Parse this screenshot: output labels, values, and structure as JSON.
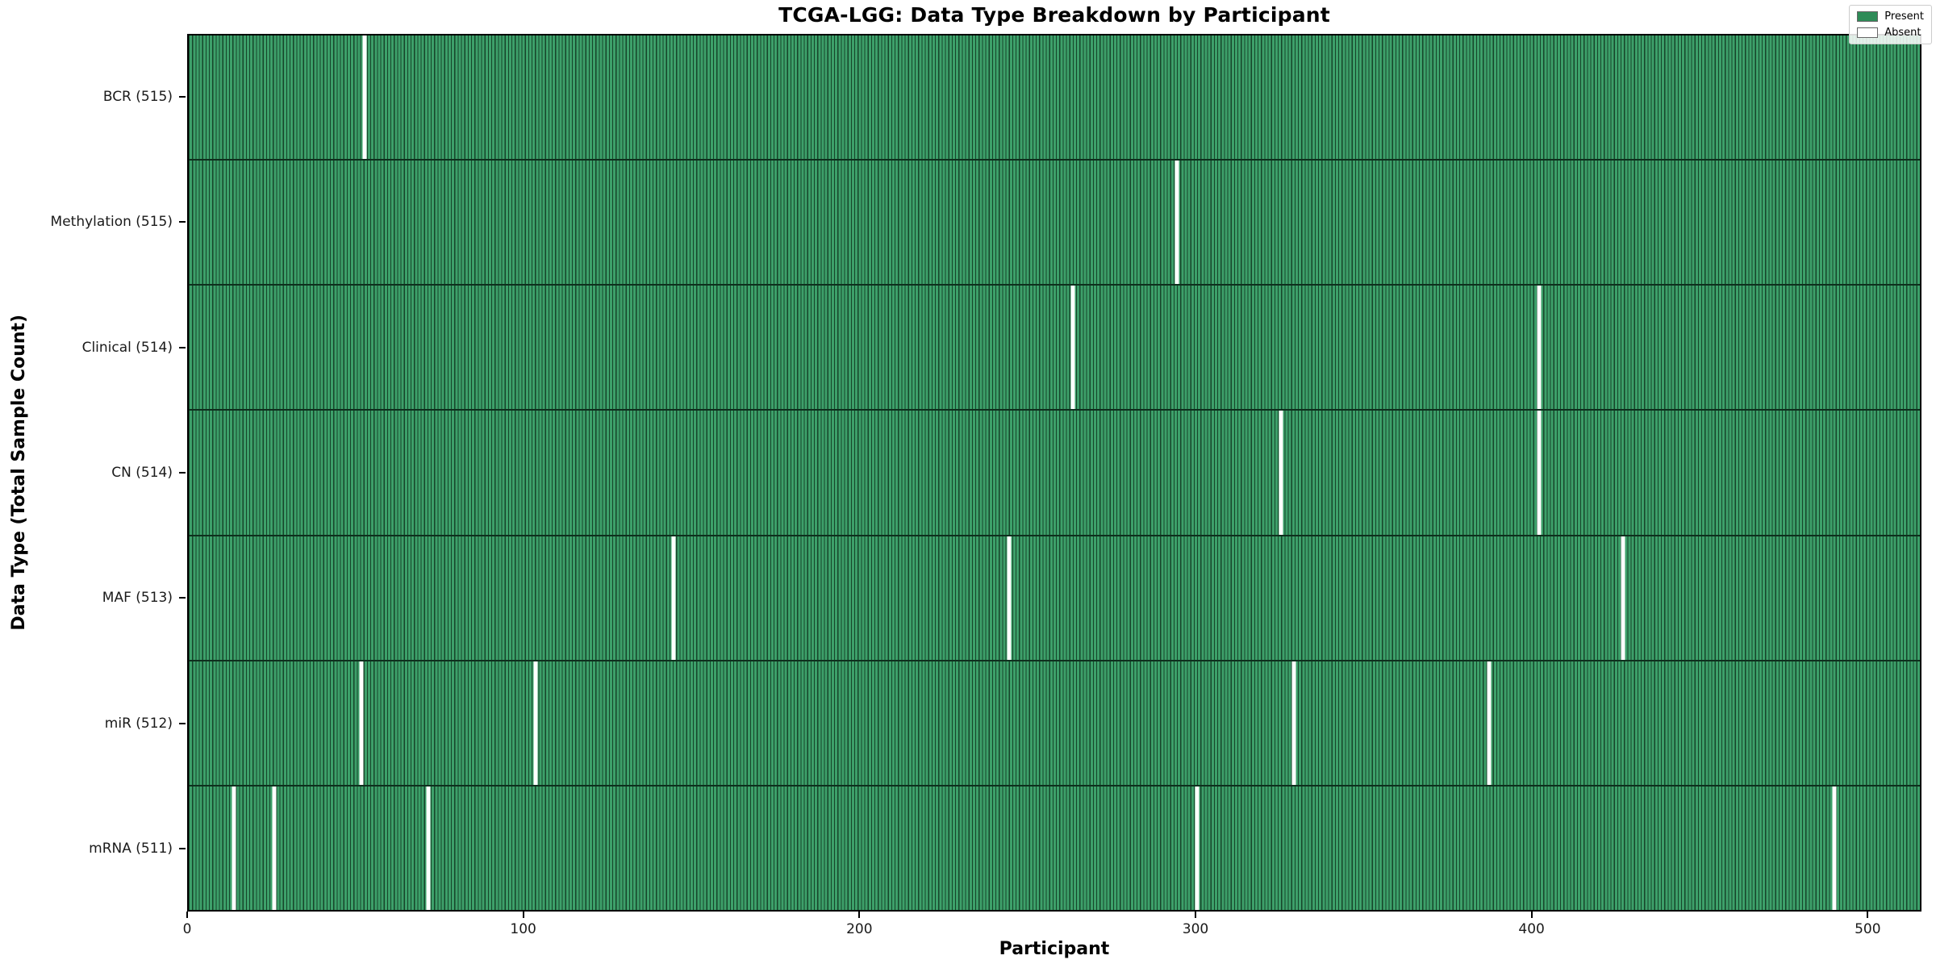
{
  "chart_data": {
    "type": "heatmap",
    "title": "TCGA-LGG: Data Type Breakdown by Participant",
    "xlabel": "Participant",
    "ylabel": "Data Type (Total Sample Count)",
    "n_participants": 516,
    "x_ticks": [
      0,
      100,
      200,
      300,
      400,
      500
    ],
    "x_range": [
      0,
      516
    ],
    "grid": false,
    "legend": {
      "position": "upper right",
      "entries": [
        {
          "label": "Present",
          "color": "#2e8b57"
        },
        {
          "label": "Absent",
          "color": "#ffffff"
        }
      ]
    },
    "rows": [
      {
        "name": "BCR",
        "label": "BCR (515)",
        "total_present": 515,
        "absent_participants": [
          52
        ]
      },
      {
        "name": "Methylation",
        "label": "Methylation (515)",
        "total_present": 515,
        "absent_participants": [
          294
        ]
      },
      {
        "name": "Clinical",
        "label": "Clinical (514)",
        "total_present": 514,
        "absent_participants": [
          263,
          402
        ]
      },
      {
        "name": "CN",
        "label": "CN (514)",
        "total_present": 514,
        "absent_participants": [
          325,
          402
        ]
      },
      {
        "name": "MAF",
        "label": "MAF (513)",
        "total_present": 513,
        "absent_participants": [
          144,
          244,
          427
        ]
      },
      {
        "name": "miR",
        "label": "miR (512)",
        "total_present": 512,
        "absent_participants": [
          51,
          103,
          329,
          387
        ]
      },
      {
        "name": "mRNA",
        "label": "mRNA (511)",
        "total_present": 511,
        "absent_participants": [
          13,
          25,
          71,
          300,
          490
        ]
      }
    ],
    "colors": {
      "present": "#2e8b57",
      "present_light": "#3da06a",
      "bar_edge": "#16452a",
      "absent": "#ffffff",
      "row_divider": "#0e2f1d",
      "spine": "#000000"
    }
  }
}
